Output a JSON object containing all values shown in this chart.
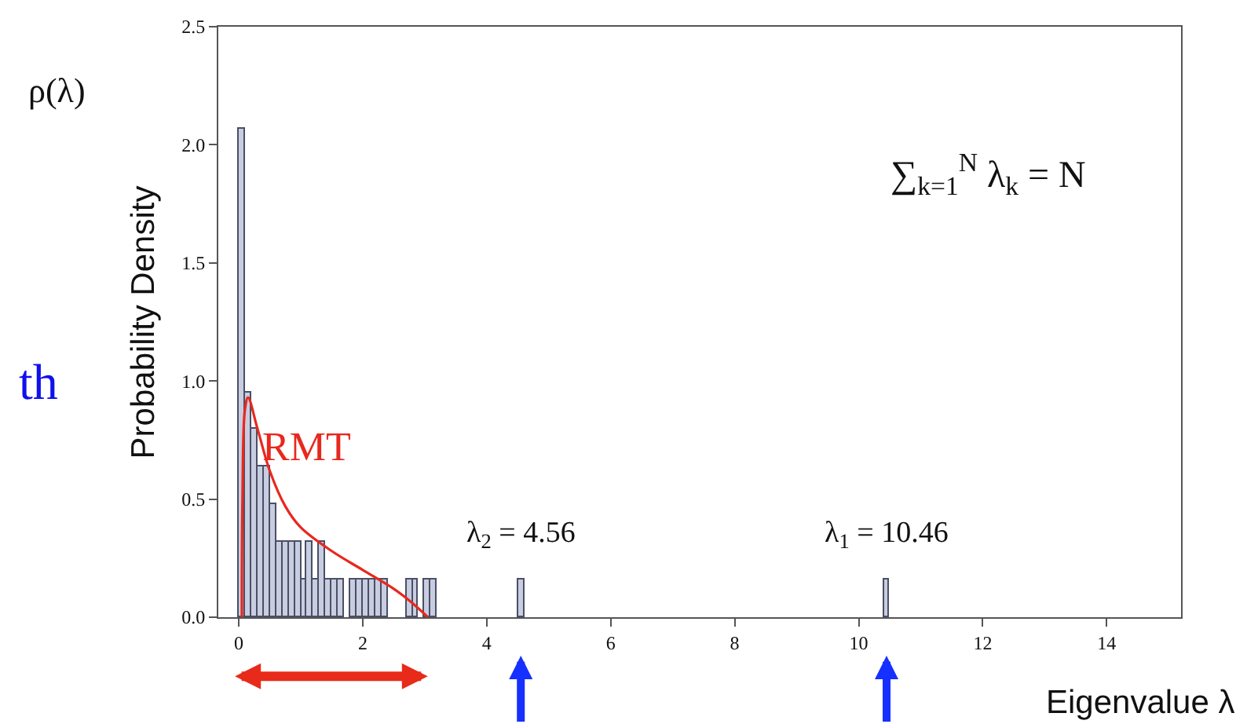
{
  "chart_data": {
    "type": "histogram",
    "xlabel": "Eigenvalue λ",
    "ylabel": "Probability Density",
    "bins": [
      0,
      0.1,
      0.2,
      0.3,
      0.4,
      0.5,
      0.6,
      0.7,
      0.8,
      0.9,
      1.0,
      1.1,
      1.2,
      1.3,
      1.4,
      1.5,
      1.6,
      1.7,
      1.8,
      1.9,
      2.0,
      2.1,
      2.2,
      2.3,
      2.4,
      2.5,
      2.6,
      2.7,
      2.8,
      2.9,
      3.0,
      3.1,
      3.2,
      3.3,
      3.4,
      3.5,
      3.6,
      3.7,
      3.8,
      3.9,
      4.0,
      4.1,
      4.2,
      4.3,
      4.4,
      4.5,
      4.6,
      4.7,
      4.8,
      4.9,
      5.0,
      5.1,
      5.2,
      5.3,
      5.4,
      5.5,
      5.6,
      5.7,
      5.8,
      5.9,
      6.0,
      6.1,
      6.2,
      6.3,
      6.4,
      6.5,
      6.6,
      6.7,
      6.8,
      6.9,
      7.0,
      7.1,
      7.2,
      7.3,
      7.4,
      7.5,
      7.6,
      7.7,
      7.8,
      7.9,
      8.0,
      8.1,
      8.2,
      8.3,
      8.4,
      8.5,
      8.6,
      8.7,
      8.8,
      8.9,
      9.0,
      9.1,
      9.2,
      9.3,
      9.4,
      9.5,
      9.6,
      9.7,
      9.8,
      9.9,
      10.0,
      10.1,
      10.2,
      10.3,
      10.4,
      10.5
    ],
    "series": [
      {
        "color": "#c8cde0",
        "values": [
          2.07,
          0.95,
          0.8,
          0.64,
          0.64,
          0.48,
          0.32,
          0.32,
          0.32,
          0.32,
          0.16,
          0.32,
          0.16,
          0.32,
          0.16,
          0.16,
          0.16,
          0,
          0.16,
          0.16,
          0.16,
          0.16,
          0.16,
          0.16,
          0,
          0,
          0,
          0.16,
          0.16,
          0,
          0.16,
          0.16,
          0,
          0,
          0,
          0,
          0,
          0,
          0,
          0,
          0,
          0,
          0,
          0,
          0,
          0.16,
          0,
          0,
          0,
          0,
          0,
          0,
          0,
          0,
          0,
          0,
          0,
          0,
          0,
          0,
          0,
          0,
          0,
          0,
          0,
          0,
          0,
          0,
          0,
          0,
          0,
          0,
          0,
          0,
          0,
          0,
          0,
          0,
          0,
          0,
          0,
          0,
          0,
          0,
          0,
          0,
          0,
          0,
          0,
          0,
          0,
          0,
          0,
          0,
          0,
          0,
          0,
          0,
          0,
          0,
          0,
          0,
          0,
          0,
          0.16
        ]
      },
      {
        "type": "line",
        "name": "RMT",
        "color": "#e8281e",
        "x": [
          0.05,
          0.06,
          0.1,
          0.15,
          0.3,
          0.5,
          0.75,
          1.0,
          1.5,
          2.0,
          2.5,
          2.8,
          3.05
        ],
        "values": [
          0,
          0.5,
          0.88,
          0.93,
          0.8,
          0.62,
          0.47,
          0.38,
          0.28,
          0.2,
          0.12,
          0.06,
          0
        ]
      }
    ],
    "xlim": [
      -0.33,
      15.2
    ],
    "xticks": [
      0,
      2,
      4,
      6,
      8,
      10,
      12,
      14
    ],
    "ylim": [
      0,
      2.5
    ],
    "yticks": [
      {
        "value": 0,
        "label": "0.0"
      },
      {
        "value": 0.5,
        "label": "0.5"
      },
      {
        "value": 1,
        "label": "1.0"
      },
      {
        "value": 1.5,
        "label": "1.5"
      },
      {
        "value": 2,
        "label": "2.0"
      },
      {
        "value": 2.5,
        "label": "2.5"
      }
    ],
    "grid": false,
    "legend": false,
    "annotations": [
      "λ$_{2}$ = 4.56",
      "λ$_{1}$ = 10.46",
      "ρ(λ)",
      "∑$_{k=1}$$^{N}$ λ$_{k}$ = N",
      "th"
    ]
  }
}
